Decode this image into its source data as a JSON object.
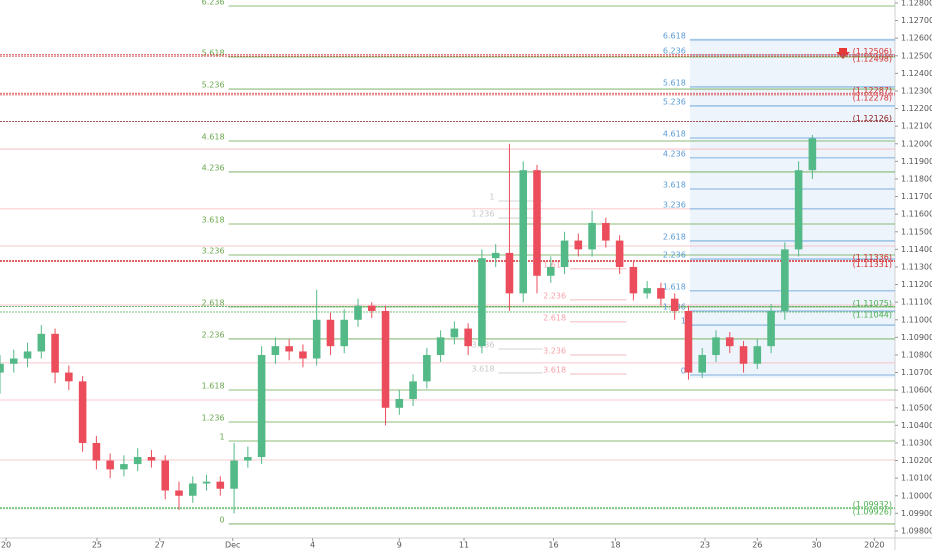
{
  "chart_data": {
    "type": "candlestick",
    "up_color": "#53b987",
    "down_color": "#eb4d5c",
    "xlim": [
      0,
      65
    ],
    "ylim": [
      1.0976,
      1.12817
    ],
    "xticks": [
      {
        "value": 0.44,
        "label": "20"
      },
      {
        "value": 7.04,
        "label": "25"
      },
      {
        "value": 11.6,
        "label": "27"
      },
      {
        "value": 16.9,
        "label": "Dec"
      },
      {
        "value": 22.7,
        "label": "4"
      },
      {
        "value": 29.0,
        "label": "9"
      },
      {
        "value": 33.7,
        "label": "11"
      },
      {
        "value": 40.2,
        "label": "16"
      },
      {
        "value": 44.7,
        "label": "18"
      },
      {
        "value": 51.2,
        "label": "23"
      },
      {
        "value": 55.0,
        "label": "26"
      },
      {
        "value": 59.3,
        "label": "30"
      },
      {
        "value": 63.5,
        "label": "2020"
      }
    ],
    "yticks": [
      {
        "value": 1.098,
        "label": "1.09800"
      },
      {
        "value": 1.099,
        "label": "1.09900"
      },
      {
        "value": 1.1,
        "label": "1.10000"
      },
      {
        "value": 1.101,
        "label": "1.10100"
      },
      {
        "value": 1.102,
        "label": "1.10200"
      },
      {
        "value": 1.103,
        "label": "1.10300"
      },
      {
        "value": 1.104,
        "label": "1.10400"
      },
      {
        "value": 1.105,
        "label": "1.10500"
      },
      {
        "value": 1.106,
        "label": "1.10600"
      },
      {
        "value": 1.107,
        "label": "1.10700"
      },
      {
        "value": 1.108,
        "label": "1.10800"
      },
      {
        "value": 1.109,
        "label": "1.10900"
      },
      {
        "value": 1.11,
        "label": "1.11000"
      },
      {
        "value": 1.111,
        "label": "1.11100"
      },
      {
        "value": 1.112,
        "label": "1.11200"
      },
      {
        "value": 1.113,
        "label": "1.11300"
      },
      {
        "value": 1.114,
        "label": "1.11400"
      },
      {
        "value": 1.115,
        "label": "1.11500"
      },
      {
        "value": 1.116,
        "label": "1.11600"
      },
      {
        "value": 1.117,
        "label": "1.11700"
      },
      {
        "value": 1.118,
        "label": "1.11800"
      },
      {
        "value": 1.119,
        "label": "1.11900"
      },
      {
        "value": 1.12,
        "label": "1.12000"
      },
      {
        "value": 1.121,
        "label": "1.12100"
      },
      {
        "value": 1.122,
        "label": "1.12200"
      },
      {
        "value": 1.123,
        "label": "1.12300"
      },
      {
        "value": 1.124,
        "label": "1.12400"
      },
      {
        "value": 1.125,
        "label": "1.12500"
      },
      {
        "value": 1.126,
        "label": "1.12600"
      },
      {
        "value": 1.127,
        "label": "1.12700"
      },
      {
        "value": 1.128,
        "label": "1.12800"
      }
    ],
    "open": [
      1.107,
      1.1075,
      1.1078,
      1.1082,
      1.1092,
      1.107,
      1.1065,
      1.103,
      1.102,
      1.1015,
      1.1018,
      1.1022,
      1.102,
      1.1003,
      1.1,
      1.1007,
      1.1008,
      1.1004,
      1.102,
      1.1022,
      1.108,
      1.1085,
      1.1082,
      1.1078,
      1.11,
      1.1085,
      1.11,
      1.1108,
      1.1105,
      1.105,
      1.1055,
      1.1065,
      1.108,
      1.109,
      1.1095,
      1.1085,
      1.1135,
      1.1138,
      1.1115,
      1.1185,
      1.1125,
      1.113,
      1.1145,
      1.114,
      1.1155,
      1.1145,
      1.113,
      1.1115,
      1.1118,
      1.1112,
      1.1105,
      1.107,
      1.108,
      1.109,
      1.1085,
      1.1075,
      1.1085,
      1.1105,
      1.114,
      1.1185
    ],
    "high": [
      1.108,
      1.1083,
      1.1087,
      1.1097,
      1.1095,
      1.1074,
      1.1068,
      1.1034,
      1.1024,
      1.1023,
      1.1027,
      1.1026,
      1.1023,
      1.1008,
      1.1011,
      1.1012,
      1.1011,
      1.103,
      1.1028,
      1.1085,
      1.109,
      1.1089,
      1.1086,
      1.1117,
      1.1104,
      1.1106,
      1.1112,
      1.111,
      1.1108,
      1.106,
      1.1069,
      1.1084,
      1.1094,
      1.1099,
      1.1098,
      1.114,
      1.1143,
      1.12,
      1.119,
      1.1188,
      1.1136,
      1.115,
      1.1149,
      1.1162,
      1.1158,
      1.1148,
      1.1133,
      1.1122,
      1.1121,
      1.1115,
      1.1108,
      1.1084,
      1.1094,
      1.1093,
      1.1088,
      1.1089,
      1.1109,
      1.1144,
      1.119,
      1.1205
    ],
    "low": [
      1.1058,
      1.107,
      1.1073,
      1.1078,
      1.1064,
      1.106,
      1.1025,
      1.1015,
      1.101,
      1.1011,
      1.1014,
      1.1016,
      1.0998,
      1.0992,
      1.0996,
      1.1003,
      1.1,
      1.099,
      1.1016,
      1.1018,
      1.1075,
      1.1077,
      1.1073,
      1.1074,
      1.108,
      1.1081,
      1.1096,
      1.1101,
      1.104,
      1.1046,
      1.1051,
      1.1061,
      1.1076,
      1.1086,
      1.108,
      1.1081,
      1.113,
      1.1105,
      1.111,
      1.1115,
      1.1121,
      1.1126,
      1.1136,
      1.1136,
      1.1141,
      1.1126,
      1.1111,
      1.1112,
      1.1108,
      1.11,
      1.1066,
      1.1067,
      1.1076,
      1.1081,
      1.107,
      1.1072,
      1.1081,
      1.11,
      1.1136,
      1.118
    ],
    "close": [
      1.1075,
      1.1078,
      1.1082,
      1.1092,
      1.107,
      1.1065,
      1.103,
      1.102,
      1.1015,
      1.1018,
      1.1022,
      1.102,
      1.1003,
      1.1,
      1.1007,
      1.1008,
      1.1004,
      1.102,
      1.1022,
      1.108,
      1.1085,
      1.1082,
      1.1078,
      1.11,
      1.1085,
      1.11,
      1.1108,
      1.1105,
      1.105,
      1.1055,
      1.1065,
      1.108,
      1.109,
      1.1095,
      1.1085,
      1.1135,
      1.1138,
      1.1115,
      1.1185,
      1.1125,
      1.113,
      1.1145,
      1.114,
      1.1155,
      1.1145,
      1.113,
      1.1115,
      1.1118,
      1.1112,
      1.1105,
      1.107,
      1.108,
      1.109,
      1.1085,
      1.1075,
      1.1085,
      1.1105,
      1.114,
      1.1185,
      1.1203
    ],
    "fibs": [
      {
        "color": "#6aa84f",
        "start": 16.6,
        "end": 65,
        "levels": [
          {
            "ratio": 0,
            "price": 1.0984
          },
          {
            "ratio": 1,
            "price": 1.10311
          },
          {
            "ratio": 1.236,
            "price": 1.10419
          },
          {
            "ratio": 1.618,
            "price": 1.10601
          },
          {
            "ratio": 2.236,
            "price": 1.10891
          },
          {
            "ratio": 2.618,
            "price": 1.11073
          },
          {
            "ratio": 3.236,
            "price": 1.11368
          },
          {
            "ratio": 3.618,
            "price": 1.11544
          },
          {
            "ratio": 4.236,
            "price": 1.1184
          },
          {
            "ratio": 4.618,
            "price": 1.12016
          },
          {
            "ratio": 5.236,
            "price": 1.12311
          },
          {
            "ratio": 5.618,
            "price": 1.12493
          },
          {
            "ratio": 6.236,
            "price": 1.12783
          }
        ]
      },
      {
        "color": "#5b9bd5",
        "start": 50.1,
        "end": 65,
        "levels": [
          {
            "ratio": 0,
            "price": 1.10686
          },
          {
            "ratio": 1,
            "price": 1.1097
          },
          {
            "ratio": 1.236,
            "price": 1.1105
          },
          {
            "ratio": 1.618,
            "price": 1.11164
          },
          {
            "ratio": 2.236,
            "price": 1.11345
          },
          {
            "ratio": 2.618,
            "price": 1.11448
          },
          {
            "ratio": 3.236,
            "price": 1.1163
          },
          {
            "ratio": 3.618,
            "price": 1.11743
          },
          {
            "ratio": 4.236,
            "price": 1.1192
          },
          {
            "ratio": 4.618,
            "price": 1.12033
          },
          {
            "ratio": 5.236,
            "price": 1.12215
          },
          {
            "ratio": 5.618,
            "price": 1.12323
          },
          {
            "ratio": 6.236,
            "price": 1.12505
          },
          {
            "ratio": 6.618,
            "price": 1.1259
          }
        ]
      },
      {
        "color": "#f4a3a8",
        "start": 41.4,
        "end": 45.5,
        "levels": [
          {
            "ratio": 1.618,
            "price": 1.11289
          },
          {
            "ratio": 2.236,
            "price": 1.11113
          },
          {
            "ratio": 2.618,
            "price": 1.10988
          },
          {
            "ratio": 3.236,
            "price": 1.108
          },
          {
            "ratio": 3.618,
            "price": 1.10692
          }
        ]
      },
      {
        "color": "#c8c8c8",
        "start": 36.2,
        "end": 39.4,
        "levels": [
          {
            "ratio": 1,
            "price": 1.11675
          },
          {
            "ratio": 1.236,
            "price": 1.11578
          },
          {
            "ratio": 3.236,
            "price": 1.10834
          },
          {
            "ratio": 3.618,
            "price": 1.10698
          }
        ]
      }
    ],
    "rays": [
      1.1197,
      1.1163,
      1.11419,
      1.11084,
      1.10755,
      1.10544,
      1.10203
    ],
    "ray_color": "#f4b6ba",
    "price_lines": [
      {
        "price": 1.12506,
        "label": "(1.12506)",
        "color": "#d32f2f"
      },
      {
        "price": 1.12498,
        "label": "(1.12498)",
        "color": "#d32f2f"
      },
      {
        "price": 1.12287,
        "label": "(1.12287)",
        "color": "#d32f2f"
      },
      {
        "price": 1.12278,
        "label": "(1.12278)",
        "color": "#d32f2f"
      },
      {
        "price": 1.12126,
        "label": "(1.12126)",
        "color": "#8b1a1a"
      },
      {
        "price": 1.11336,
        "label": "(1.11336)",
        "color": "#d32f2f"
      },
      {
        "price": 1.11331,
        "label": "(1.11331)",
        "color": "#d32f2f"
      },
      {
        "price": 1.11075,
        "label": "(1.11075)",
        "color": "#4caf50"
      },
      {
        "price": 1.11044,
        "label": "(1.11044)",
        "color": "#4caf50"
      },
      {
        "price": 1.09932,
        "label": "(1.09932)",
        "color": "#4caf50"
      },
      {
        "price": 1.09926,
        "label": "(1.09926)",
        "color": "#4caf50"
      }
    ]
  }
}
